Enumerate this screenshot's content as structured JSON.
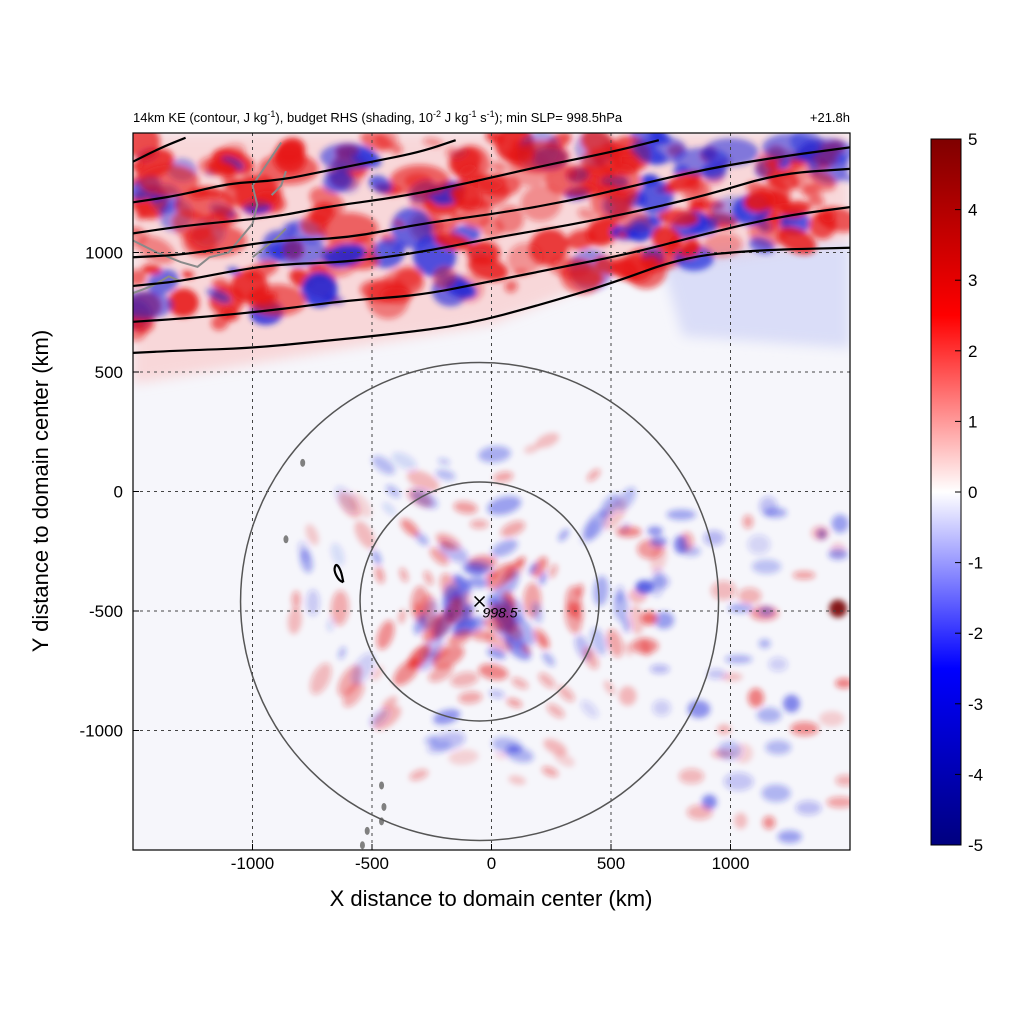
{
  "chart_data": {
    "type": "heatmap",
    "title": {
      "main_pre": "14km KE (contour, J kg",
      "sup1": "-1",
      "main_mid": "), budget RHS (shading, 10",
      "sup2": "-2",
      "main_mid2": " J kg",
      "sup3": "-1",
      "main_mid3": " s",
      "sup4": "-1",
      "main_post": "); min SLP= 998.5hPa",
      "time": "+21.8h"
    },
    "xlabel": "X distance to domain center (km)",
    "ylabel": "Y distance to domain center (km)",
    "xlim": [
      -1500,
      1500
    ],
    "ylim": [
      -1500,
      1500
    ],
    "xticks": [
      -1000,
      -500,
      0,
      500,
      1000
    ],
    "yticks": [
      -1000,
      -500,
      0,
      500,
      1000
    ],
    "xtick_labels": [
      "-1000",
      "-500",
      "0",
      "500",
      "1000"
    ],
    "ytick_labels": [
      "-1000",
      "-500",
      "0",
      "500",
      "1000"
    ],
    "grid": true,
    "colorbar": {
      "range": [
        -5,
        5
      ],
      "ticks": [
        5,
        4,
        3,
        2,
        1,
        0,
        -1,
        -2,
        -3,
        -4,
        -5
      ],
      "tick_labels": [
        "5",
        "4",
        "3",
        "2",
        "1",
        "0",
        "-1",
        "-2",
        "-3",
        "-4",
        "-5"
      ],
      "colors": [
        "#00007f",
        "#0000ff",
        "#ffffff",
        "#ff0000",
        "#7f0000"
      ]
    },
    "storm_center": {
      "x": -50,
      "y": -460,
      "label": "998.5"
    },
    "rings_km": [
      500,
      1000
    ],
    "ke_contours": [
      [
        [
          -1500,
          580
        ],
        [
          -1300,
          590
        ],
        [
          -1000,
          600
        ],
        [
          -700,
          630
        ],
        [
          -400,
          660
        ],
        [
          -100,
          700
        ],
        [
          200,
          780
        ],
        [
          500,
          870
        ],
        [
          800,
          980
        ],
        [
          1100,
          1010
        ],
        [
          1500,
          1020
        ]
      ],
      [
        [
          -1500,
          710
        ],
        [
          -1200,
          730
        ],
        [
          -900,
          760
        ],
        [
          -600,
          800
        ],
        [
          -300,
          820
        ],
        [
          0,
          880
        ],
        [
          300,
          940
        ],
        [
          600,
          1000
        ],
        [
          900,
          1080
        ],
        [
          1200,
          1150
        ],
        [
          1500,
          1190
        ]
      ],
      [
        [
          -1500,
          860
        ],
        [
          -1300,
          880
        ],
        [
          -1100,
          920
        ],
        [
          -900,
          950
        ],
        [
          -600,
          960
        ],
        [
          -300,
          1000
        ],
        [
          0,
          1060
        ],
        [
          300,
          1110
        ],
        [
          600,
          1170
        ],
        [
          900,
          1240
        ],
        [
          1200,
          1330
        ],
        [
          1500,
          1350
        ]
      ],
      [
        [
          -1500,
          980
        ],
        [
          -1300,
          990
        ],
        [
          -1100,
          1020
        ],
        [
          -900,
          1050
        ],
        [
          -600,
          1060
        ],
        [
          -300,
          1120
        ],
        [
          0,
          1160
        ],
        [
          300,
          1210
        ],
        [
          600,
          1280
        ],
        [
          900,
          1350
        ],
        [
          1200,
          1400
        ],
        [
          1500,
          1440
        ]
      ],
      [
        [
          -1500,
          1080
        ],
        [
          -1300,
          1110
        ],
        [
          -1100,
          1130
        ],
        [
          -900,
          1150
        ],
        [
          -700,
          1190
        ],
        [
          -400,
          1230
        ],
        [
          -100,
          1290
        ],
        [
          200,
          1360
        ],
        [
          500,
          1420
        ],
        [
          700,
          1470
        ]
      ],
      [
        [
          -1500,
          1210
        ],
        [
          -1300,
          1240
        ],
        [
          -1100,
          1290
        ],
        [
          -900,
          1300
        ],
        [
          -700,
          1340
        ],
        [
          -500,
          1380
        ],
        [
          -300,
          1420
        ],
        [
          -150,
          1470
        ]
      ],
      [
        [
          -1500,
          1380
        ],
        [
          -1380,
          1440
        ],
        [
          -1280,
          1480
        ]
      ],
      [
        [
          -620,
          -380
        ],
        [
          -640,
          -370
        ],
        [
          -660,
          -330
        ],
        [
          -650,
          -300
        ],
        [
          -630,
          -330
        ],
        [
          -620,
          -380
        ]
      ]
    ]
  }
}
